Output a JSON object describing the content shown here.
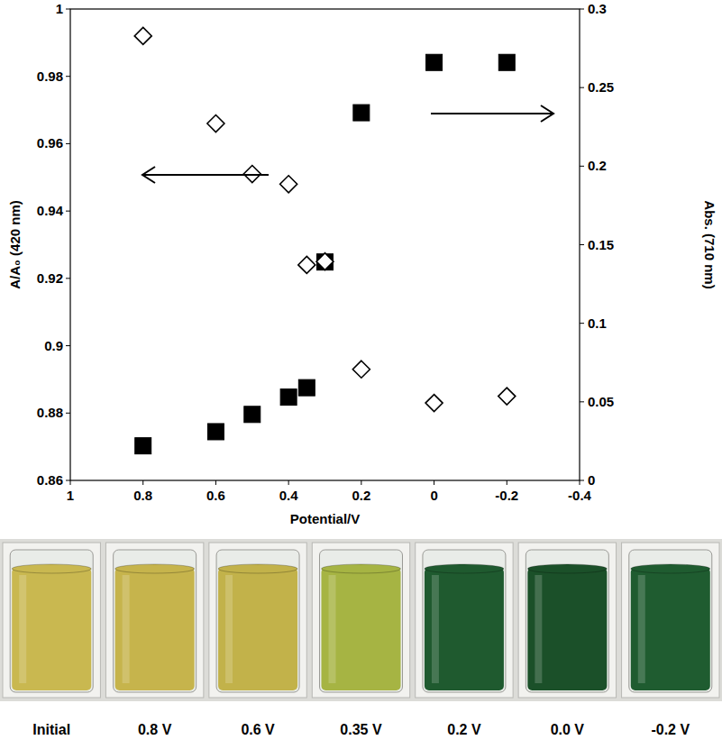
{
  "chart_data": {
    "type": "scatter",
    "xlabel": "Potential/V",
    "ylabel": "A/A₀ (420 nm)",
    "y2label": "Abs. (710 nm)",
    "x": [
      0.8,
      0.6,
      0.5,
      0.4,
      0.35,
      0.3,
      0.2,
      0.0,
      -0.2
    ],
    "xlim": [
      1,
      -0.4
    ],
    "xticks": [
      1,
      0.8,
      0.6,
      0.4,
      0.2,
      0,
      -0.2,
      -0.4
    ],
    "ylim": [
      0.86,
      1
    ],
    "yticks": [
      0.86,
      0.88,
      0.9,
      0.92,
      0.94,
      0.96,
      0.98,
      1
    ],
    "y2lim": [
      0,
      0.3
    ],
    "y2ticks": [
      0,
      0.05,
      0.1,
      0.15,
      0.2,
      0.25,
      0.3
    ],
    "grid": false,
    "series": [
      {
        "axis": "y",
        "marker": "diamond-open",
        "color": "#000000",
        "values": [
          0.992,
          0.966,
          0.951,
          0.948,
          0.924,
          0.925,
          0.893,
          0.883,
          0.885
        ]
      },
      {
        "axis": "y2",
        "marker": "square",
        "color": "#000000",
        "values": [
          0.022,
          0.031,
          0.042,
          0.053,
          0.059,
          0.139,
          0.234,
          0.266,
          0.266
        ]
      }
    ]
  },
  "photo": {
    "labels": [
      "Initial",
      "0.8 V",
      "0.6 V",
      "0.35 V",
      "0.2 V",
      "0.0 V",
      "-0.2 V"
    ],
    "colors": [
      "#c9b850",
      "#c6b44c",
      "#c2b24a",
      "#a6b443",
      "#1f5a2f",
      "#1b5029",
      "#1f5c30"
    ]
  }
}
